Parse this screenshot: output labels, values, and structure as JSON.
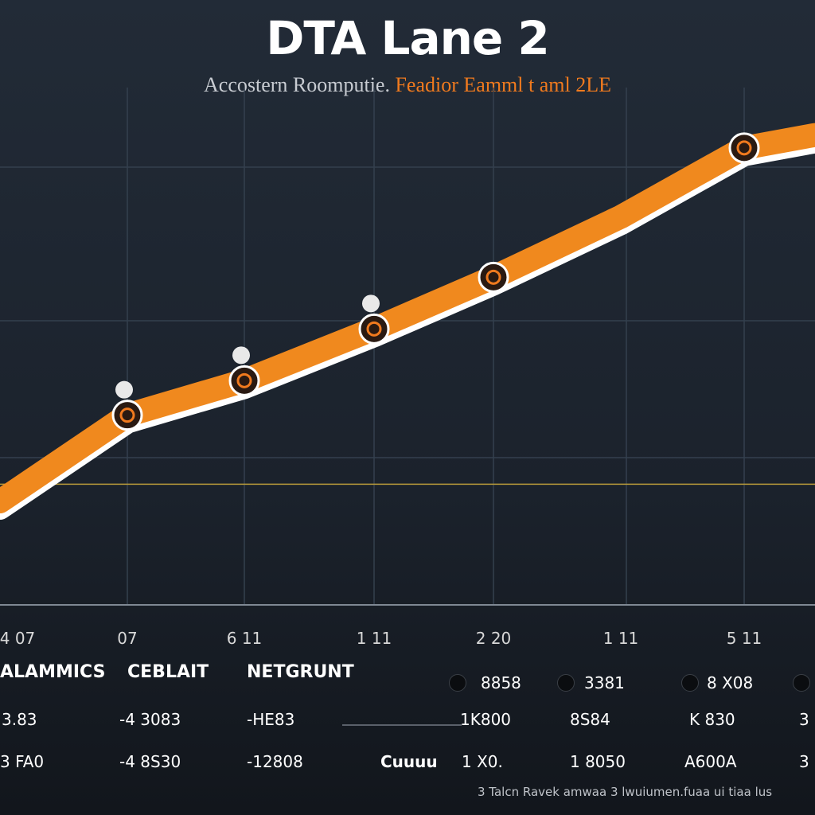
{
  "title": "DTA Lane 2",
  "subtitle_a": "Accostern Roomputie.",
  "subtitle_b": "Feadior Eamml t aml 2LE",
  "colors": {
    "line": "#f0891e",
    "line_edge": "#ffffff",
    "grid": "#34404e",
    "marker": "#2a1a12",
    "marker_ring": "#ffffff",
    "accent": "#f07a1e"
  },
  "chart_data": {
    "type": "line",
    "title": "DTA Lane 2",
    "x": [
      "4 07",
      "07",
      "6 11",
      "1 11",
      "2 20",
      "1 11",
      "5 11"
    ],
    "ylim": [
      0,
      6
    ],
    "series": [
      {
        "values": [
          1.2,
          2.2,
          2.6,
          3.2,
          3.8,
          4.5,
          5.3
        ],
        "markers": [
          false,
          true,
          true,
          true,
          true,
          false,
          true
        ]
      }
    ],
    "reference_line": 1.4,
    "grid": true
  },
  "table": {
    "headers": [
      "ALAMMICS",
      "CEBLAIT",
      "NETGRUNT"
    ],
    "rows": [
      [
        "3.83",
        "-4 3083",
        "-HE83"
      ],
      [
        "3 FA0",
        "-4 8S30",
        "-12808"
      ]
    ],
    "right_row1": [
      "8858",
      "3381",
      "8 X08",
      ""
    ],
    "right_row2": [
      "1K800",
      "8S84",
      "K 830",
      "3"
    ],
    "right_row3": [
      "1 X0.",
      "1 8050",
      "A600A",
      "3"
    ],
    "extra": "Cuuuu",
    "footer": "3 Talcn Ravek amwaa 3 lwuiumen.fuaa ui tiaa lus"
  }
}
